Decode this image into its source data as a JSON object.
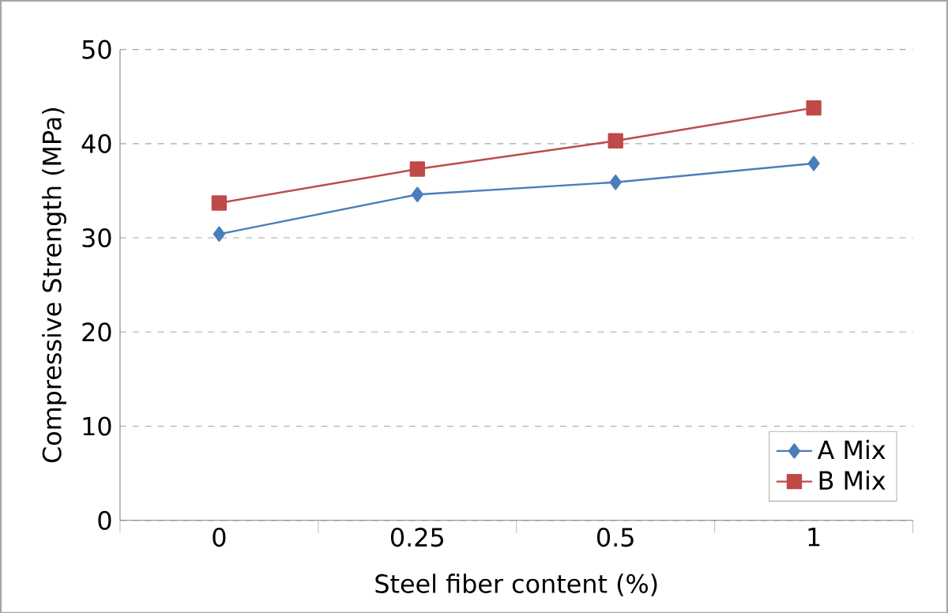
{
  "chart_data": {
    "type": "line",
    "xlabel": "Steel fiber content (%)",
    "ylabel": "Compressive Strength (MPa)",
    "categories": [
      "0",
      "0.25",
      "0.5",
      "1"
    ],
    "series": [
      {
        "name": "A Mix",
        "color": "#4a7ebb",
        "marker": "diamond",
        "values": [
          30.4,
          34.6,
          35.9,
          37.9
        ]
      },
      {
        "name": "B Mix",
        "color": "#be4b48",
        "marker": "square",
        "values": [
          33.7,
          37.3,
          40.3,
          43.8
        ]
      }
    ],
    "ylim": [
      0,
      50
    ],
    "yticks": [
      0,
      10,
      20,
      30,
      40,
      50
    ],
    "grid": "y",
    "legend": "bottom right"
  }
}
